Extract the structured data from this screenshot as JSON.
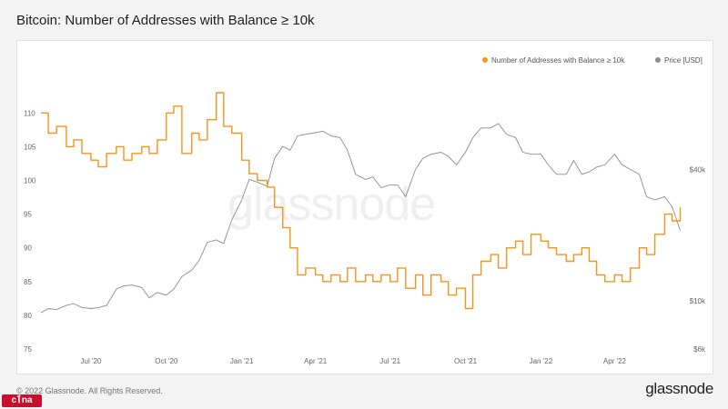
{
  "title": "Bitcoin: Number of Addresses with Balance ≥ 10k",
  "footer": "© 2022 Glassnode. All Rights Reserved.",
  "brand": "glassnode",
  "watermark": "glassnode",
  "stamp": "cٱna",
  "colors": {
    "addresses": "#f7931a",
    "price": "#8c8c8c",
    "background": "#f3f3f3"
  },
  "chart_data": {
    "type": "line",
    "title": "Bitcoin: Number of Addresses with Balance ≥ 10k",
    "x_labels": [
      "Jul '20",
      "Oct '20",
      "Jan '21",
      "Apr '21",
      "Jul '21",
      "Oct '21",
      "Jan '22",
      "Apr '22"
    ],
    "x_label_dates": [
      "2020-07-01",
      "2020-10-01",
      "2021-01-01",
      "2021-04-01",
      "2021-07-01",
      "2021-10-01",
      "2022-01-01",
      "2022-04-01"
    ],
    "x_range": [
      "2020-05-01",
      "2022-06-25"
    ],
    "legend": [
      "Number of Addresses with Balance ≥ 10k",
      "Price [USD]"
    ],
    "left_axis": {
      "ticks": [
        75,
        80,
        85,
        90,
        95,
        100,
        105,
        110
      ],
      "ylim": [
        75,
        113
      ]
    },
    "right_axis": {
      "ticks": [
        "$6k",
        "$10k",
        "$40k"
      ],
      "tick_values": [
        6000,
        10000,
        40000
      ],
      "scale": "log",
      "ylim": [
        6000,
        90000
      ]
    },
    "series": [
      {
        "name": "Number of Addresses with Balance ≥ 10k",
        "axis": "left",
        "dates": [
          "2020-05-01",
          "2020-05-10",
          "2020-05-20",
          "2020-06-01",
          "2020-06-10",
          "2020-06-20",
          "2020-07-01",
          "2020-07-10",
          "2020-07-20",
          "2020-08-01",
          "2020-08-10",
          "2020-08-20",
          "2020-09-01",
          "2020-09-10",
          "2020-09-20",
          "2020-10-01",
          "2020-10-10",
          "2020-10-20",
          "2020-11-01",
          "2020-11-10",
          "2020-11-20",
          "2020-12-01",
          "2020-12-10",
          "2020-12-20",
          "2021-01-01",
          "2021-01-10",
          "2021-01-20",
          "2021-02-01",
          "2021-02-10",
          "2021-02-20",
          "2021-03-01",
          "2021-03-10",
          "2021-03-20",
          "2021-04-01",
          "2021-04-10",
          "2021-04-20",
          "2021-05-01",
          "2021-05-10",
          "2021-05-20",
          "2021-06-01",
          "2021-06-10",
          "2021-06-20",
          "2021-07-01",
          "2021-07-10",
          "2021-07-20",
          "2021-08-01",
          "2021-08-10",
          "2021-08-20",
          "2021-09-01",
          "2021-09-10",
          "2021-09-20",
          "2021-10-01",
          "2021-10-10",
          "2021-10-20",
          "2021-11-01",
          "2021-11-10",
          "2021-11-20",
          "2021-12-01",
          "2021-12-10",
          "2021-12-20",
          "2022-01-01",
          "2022-01-10",
          "2022-01-20",
          "2022-02-01",
          "2022-02-10",
          "2022-02-20",
          "2022-03-01",
          "2022-03-10",
          "2022-03-20",
          "2022-04-01",
          "2022-04-10",
          "2022-04-20",
          "2022-05-01",
          "2022-05-10",
          "2022-05-20",
          "2022-06-01",
          "2022-06-10",
          "2022-06-20"
        ],
        "values": [
          110,
          107,
          108,
          105,
          106,
          104,
          103,
          102,
          104,
          105,
          103,
          104,
          105,
          104,
          106,
          110,
          111,
          104,
          107,
          106,
          109,
          113,
          108,
          107,
          103,
          101,
          100,
          99,
          96,
          93,
          90,
          86,
          87,
          86,
          85,
          86,
          85,
          87,
          85,
          86,
          85,
          86,
          85,
          87,
          84,
          86,
          83,
          86,
          85,
          83,
          84,
          81,
          86,
          88,
          89,
          87,
          90,
          91,
          89,
          92,
          91,
          90,
          89,
          88,
          89,
          90,
          88,
          86,
          85,
          86,
          85,
          87,
          90,
          89,
          92,
          95,
          94,
          96
        ]
      },
      {
        "name": "Price [USD]",
        "axis": "right",
        "dates": [
          "2020-05-01",
          "2020-05-10",
          "2020-05-20",
          "2020-06-01",
          "2020-06-10",
          "2020-06-20",
          "2020-07-01",
          "2020-07-10",
          "2020-07-20",
          "2020-08-01",
          "2020-08-10",
          "2020-08-20",
          "2020-09-01",
          "2020-09-10",
          "2020-09-20",
          "2020-10-01",
          "2020-10-10",
          "2020-10-20",
          "2020-11-01",
          "2020-11-10",
          "2020-11-20",
          "2020-12-01",
          "2020-12-10",
          "2020-12-20",
          "2021-01-01",
          "2021-01-10",
          "2021-01-20",
          "2021-02-01",
          "2021-02-10",
          "2021-02-20",
          "2021-03-01",
          "2021-03-10",
          "2021-03-20",
          "2021-04-01",
          "2021-04-10",
          "2021-04-20",
          "2021-05-01",
          "2021-05-10",
          "2021-05-20",
          "2021-06-01",
          "2021-06-10",
          "2021-06-20",
          "2021-07-01",
          "2021-07-10",
          "2021-07-20",
          "2021-08-01",
          "2021-08-10",
          "2021-08-20",
          "2021-09-01",
          "2021-09-10",
          "2021-09-20",
          "2021-10-01",
          "2021-10-10",
          "2021-10-20",
          "2021-11-01",
          "2021-11-10",
          "2021-11-20",
          "2021-12-01",
          "2021-12-10",
          "2021-12-20",
          "2022-01-01",
          "2022-01-10",
          "2022-01-20",
          "2022-02-01",
          "2022-02-10",
          "2022-02-20",
          "2022-03-01",
          "2022-03-10",
          "2022-03-20",
          "2022-04-01",
          "2022-04-10",
          "2022-04-20",
          "2022-05-01",
          "2022-05-10",
          "2022-05-20",
          "2022-06-01",
          "2022-06-10",
          "2022-06-20"
        ],
        "values": [
          8800,
          9200,
          9100,
          9500,
          9700,
          9300,
          9200,
          9300,
          9500,
          11300,
          11700,
          11800,
          11500,
          10300,
          10900,
          10600,
          11300,
          12900,
          13800,
          15300,
          18500,
          19000,
          18300,
          23500,
          29000,
          36000,
          35000,
          33500,
          45000,
          51000,
          49000,
          57000,
          58000,
          59000,
          60000,
          57000,
          56000,
          49000,
          38000,
          36000,
          37000,
          33000,
          34000,
          34000,
          30000,
          40000,
          45000,
          47000,
          48000,
          46000,
          42000,
          48000,
          56000,
          62000,
          62000,
          65000,
          58000,
          56000,
          48000,
          47000,
          47000,
          42000,
          38000,
          38000,
          44000,
          38000,
          39000,
          41000,
          42000,
          47000,
          42000,
          40000,
          38000,
          30000,
          29000,
          30000,
          27000,
          21000
        ]
      }
    ]
  }
}
